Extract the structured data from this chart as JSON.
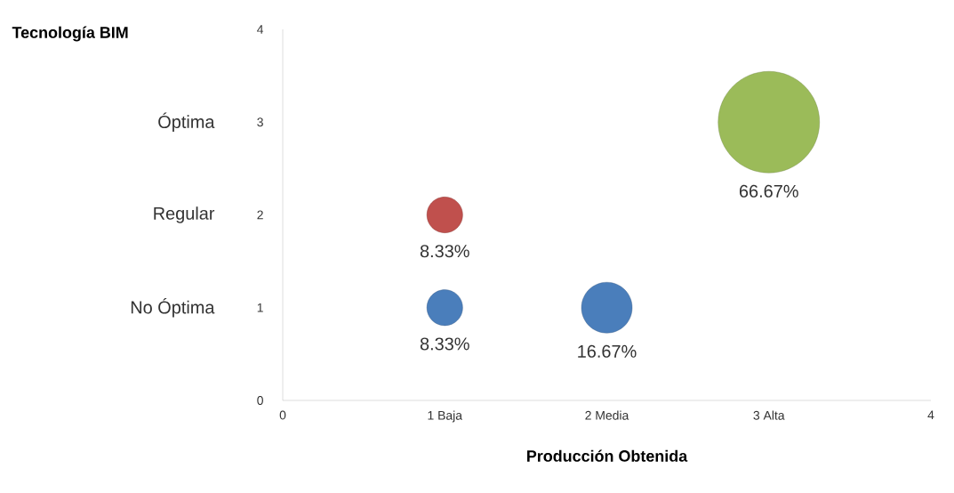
{
  "chart_data": {
    "type": "bubble",
    "xlabel": "Producción Obtenida",
    "x": [
      1,
      1,
      2,
      3
    ],
    "values": [
      1,
      2,
      1,
      3
    ],
    "sizes": [
      0.125,
      0.125,
      0.25,
      1
    ],
    "colors": [
      "#4a7ebb",
      "#c0504d",
      "#4a7ebb",
      "#9bbb59"
    ],
    "xlim": [
      0,
      4
    ],
    "ylim": [
      0,
      4
    ],
    "xticks": [
      0,
      {
        "value": 1,
        "label": "1 Baja"
      },
      {
        "value": 2,
        "label": "2 Media"
      },
      {
        "value": 3,
        "label": "3 Alta"
      },
      4
    ],
    "yticks": [
      0,
      1,
      2,
      3,
      4
    ],
    "annotations": [
      "8.33%",
      "8.33%",
      "16.67%",
      "66.67%",
      "No Óptima",
      "Regular",
      "Óptima",
      "Tecnología BIM"
    ],
    "grid": false
  }
}
